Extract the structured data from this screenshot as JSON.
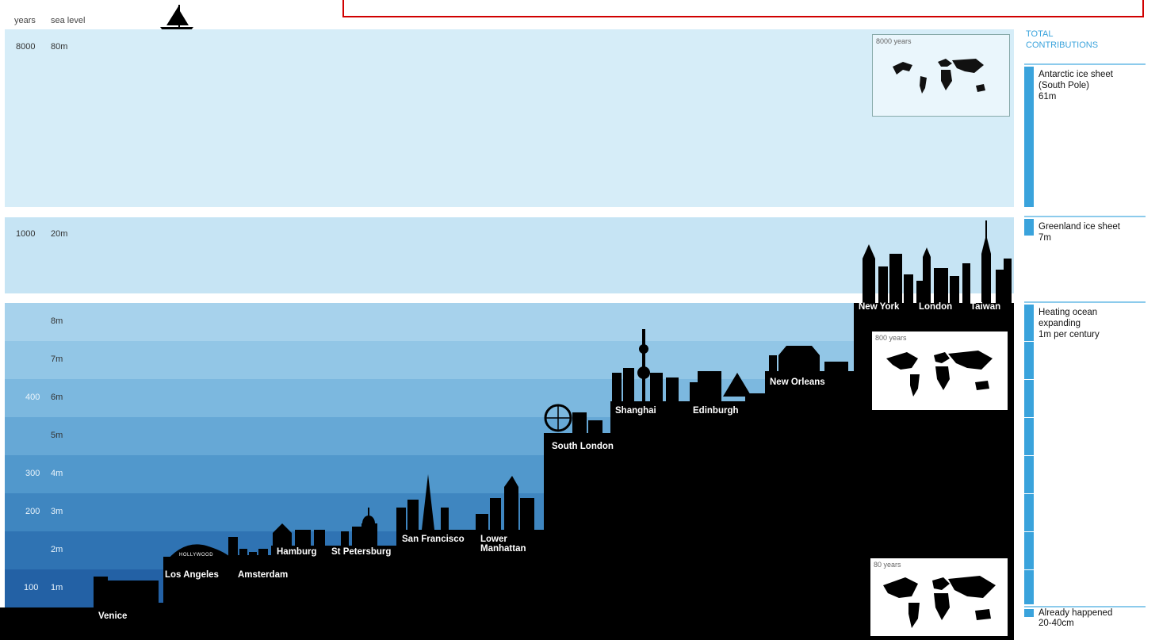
{
  "header": {
    "years_label": "years",
    "sea_level_label": "sea level",
    "boat_icon": "sailboat-icon",
    "banner_text": ""
  },
  "bands": {
    "top": {
      "years": "8000",
      "level": "80m",
      "map_label": "8000 years"
    },
    "middle": {
      "years": "1000",
      "level": "20m"
    },
    "lower": [
      {
        "years": "",
        "level": "8m"
      },
      {
        "years": "",
        "level": "7m"
      },
      {
        "years": "400",
        "level": "6m"
      },
      {
        "years": "",
        "level": "5m"
      },
      {
        "years": "300",
        "level": "4m"
      },
      {
        "years": "200",
        "level": "3m"
      },
      {
        "years": "",
        "level": "2m"
      },
      {
        "years": "100",
        "level": "1m"
      }
    ],
    "maps": {
      "mid": "800 years",
      "bottom": "80 years"
    }
  },
  "cities": {
    "venice": "Venice",
    "los_angeles": "Los Angeles",
    "hollywood": "HOLLYWOOD",
    "amsterdam": "Amsterdam",
    "hamburg": "Hamburg",
    "st_petersburg": "St Petersburg",
    "san_francisco": "San Francisco",
    "lower_manhattan": "Lower Manhattan",
    "south_london": "South London",
    "shanghai": "Shanghai",
    "edinburgh": "Edinburgh",
    "new_orleans": "New Orleans",
    "new_york": "New York",
    "london": "London",
    "taiwan": "Taiwan"
  },
  "sidebar": {
    "heading_line1": "TOTAL",
    "heading_line2": "CONTRIBUTIONS",
    "antarctic": {
      "l1": "Antarctic ice sheet",
      "l2": "(South Pole)",
      "l3": "61m"
    },
    "greenland": {
      "l1": "Greenland ice sheet",
      "l2": "7m"
    },
    "ocean": {
      "l1": "Heating ocean",
      "l2": "expanding",
      "l3": "1m per century"
    },
    "already": {
      "l1": "Already happened",
      "l2": "20-40cm"
    }
  },
  "colors": {
    "top_band": "#d6edf8",
    "middle_band": "#c6e4f4",
    "lower_bands": [
      "#a7d2ec",
      "#92c6e6",
      "#7cb8df",
      "#66a8d6",
      "#5198cc",
      "#3f86c0",
      "#2f73b3",
      "#2361a5"
    ],
    "silhouette": "#000000",
    "accent": "#3aa3dc"
  }
}
